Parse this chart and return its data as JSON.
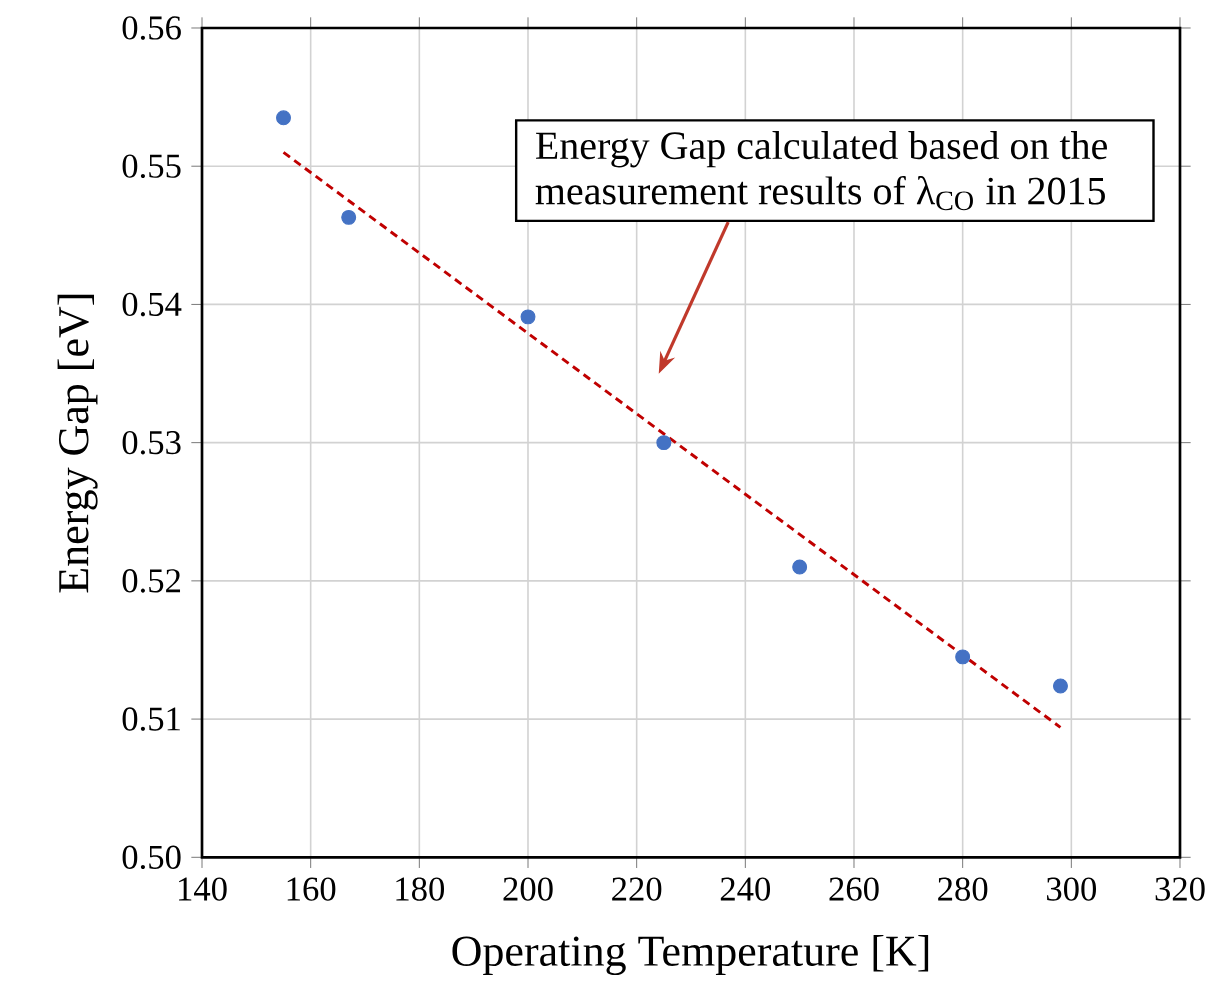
{
  "chart_data": {
    "type": "scatter",
    "xlabel": "Operating Temperature [K]",
    "ylabel": "Energy Gap [eV]",
    "x": [
      155,
      167,
      200,
      225,
      250,
      280,
      298
    ],
    "series": [
      {
        "color": "#4472c4",
        "marker": "circle",
        "values": [
          0.5535,
          0.5463,
          0.5391,
          0.53,
          0.521,
          0.5145,
          0.5124
        ]
      },
      {
        "type": "line",
        "color": "#c00000",
        "line_style": "dashed",
        "marker": "none",
        "x": [
          155,
          298
        ],
        "values": [
          0.551,
          0.5094
        ]
      }
    ],
    "xlim": [
      140,
      320
    ],
    "ylim": [
      0.5,
      0.56
    ],
    "xticks": [
      140,
      160,
      180,
      200,
      220,
      240,
      260,
      280,
      300,
      320
    ],
    "yticks": [
      {
        "value": 0.5,
        "label": "0.50"
      },
      0.51,
      0.52,
      0.53,
      0.54,
      0.55,
      0.56
    ],
    "grid": true,
    "annotations": [
      "Energy Gap calculated based on the measurement results of λ$_{CO}$ in 2015"
    ]
  }
}
